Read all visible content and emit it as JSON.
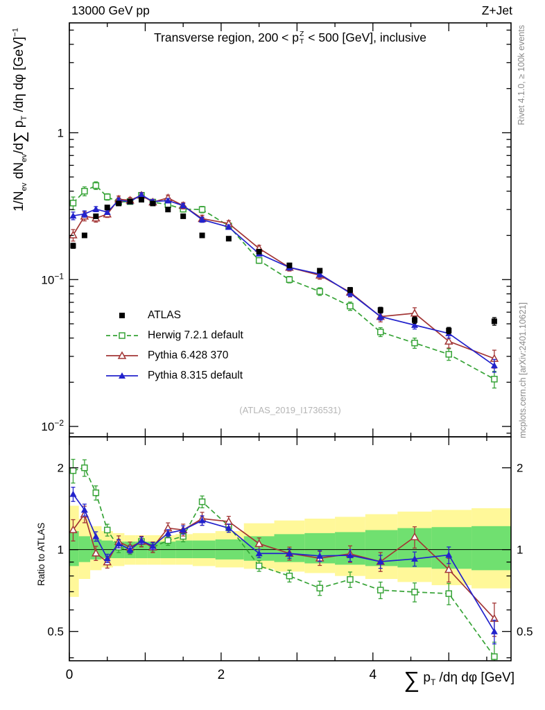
{
  "header": {
    "left": "13000 GeV pp",
    "right": "Z+Jet"
  },
  "side_notes": {
    "rivet": "Rivet 4.1.0, ≥ 100k events",
    "mcplots": "mcplots.cern.ch [arXiv:2401.10621]"
  },
  "watermark": "(ATLAS_2019_I1736531)",
  "labels": {
    "title": {
      "pre": "Transverse region, 200 < p",
      "sup": "Z",
      "sub": "T",
      "post": " < 500 [GeV], inclusive"
    },
    "ylabel_main": {
      "p1": "1/N",
      "s1": "ev",
      "p2": " dN",
      "s2": "ev",
      "p3": "/d",
      "sum": "∑",
      "p4": " p",
      "s3": "T",
      "p5": " /dη dφ  [GeV]",
      "sup": "−1"
    },
    "ylabel_ratio": "Ratio to ATLAS",
    "xlabel": {
      "sum": "∑",
      "p1": " p",
      "s1": "T",
      "p2": " /dη dφ [GeV]"
    }
  },
  "chart_data": {
    "type": "line",
    "title": "Transverse region, 200 < pT(Z) < 500 [GeV], inclusive",
    "xlabel": "∑ pT /dη dφ [GeV]",
    "ylabel": "1/N_ev dN_ev/d∑ pT /dη dφ [GeV]^-1",
    "ylabel_ratio": "Ratio to ATLAS",
    "x_range": [
      0,
      5.82
    ],
    "x_major_ticks": [
      {
        "value": 0,
        "label": "0"
      },
      {
        "value": 2,
        "label": "2"
      },
      {
        "value": 4,
        "label": "4"
      }
    ],
    "x_minor_step": 0.5,
    "y_main": {
      "scale": "log",
      "range": [
        0.0085,
        5.6
      ],
      "ticks": [
        {
          "value": 1,
          "base": "1",
          "exp": ""
        },
        {
          "value": 0.1,
          "base": "10",
          "exp": "−1"
        },
        {
          "value": 0.01,
          "base": "10",
          "exp": "−2"
        }
      ]
    },
    "y_ratio": {
      "scale": "log",
      "range": [
        0.39,
        2.6
      ],
      "ticks": [
        {
          "value": 0.5,
          "label": "0.5"
        },
        {
          "value": 1,
          "label": "1"
        },
        {
          "value": 2,
          "label": "2"
        }
      ],
      "minor": [
        0.4,
        0.6,
        0.7,
        0.8,
        0.9
      ]
    },
    "x": [
      0.05,
      0.2,
      0.35,
      0.5,
      0.65,
      0.8,
      0.95,
      1.1,
      1.3,
      1.5,
      1.75,
      2.1,
      2.5,
      2.9,
      3.3,
      3.7,
      4.1,
      4.55,
      5.0,
      5.6
    ],
    "series": [
      {
        "id": "atlas",
        "name": "ATLAS",
        "color": "#000000",
        "marker": "filled-square",
        "line": "none",
        "ref": true,
        "values": [
          0.17,
          0.2,
          0.27,
          0.31,
          0.33,
          0.34,
          0.35,
          0.33,
          0.3,
          0.27,
          0.2,
          0.19,
          0.155,
          0.125,
          0.115,
          0.085,
          0.062,
          0.053,
          0.045,
          0.052
        ],
        "err_frac": [
          0.04,
          0.035,
          0.03,
          0.03,
          0.03,
          0.03,
          0.03,
          0.03,
          0.03,
          0.03,
          0.03,
          0.03,
          0.03,
          0.035,
          0.035,
          0.04,
          0.045,
          0.05,
          0.05,
          0.06
        ]
      },
      {
        "id": "herwig",
        "name": "Herwig 7.2.1 default",
        "color": "#36a336",
        "marker": "open-square",
        "line": "dashed",
        "ref": false,
        "values": [
          0.332,
          0.4,
          0.437,
          0.366,
          0.337,
          0.34,
          0.375,
          0.337,
          0.324,
          0.302,
          0.3,
          0.232,
          0.135,
          0.1,
          0.083,
          0.066,
          0.044,
          0.037,
          0.031,
          0.021
        ],
        "err_frac": [
          0.1,
          0.07,
          0.06,
          0.05,
          0.045,
          0.04,
          0.04,
          0.04,
          0.04,
          0.045,
          0.05,
          0.04,
          0.045,
          0.05,
          0.06,
          0.065,
          0.07,
          0.08,
          0.09,
          0.13
        ]
      },
      {
        "id": "pythia6",
        "name": "Pythia 6.428 370",
        "color": "#a23535",
        "marker": "open-triangle",
        "line": "solid",
        "ref": false,
        "values": [
          0.201,
          0.27,
          0.262,
          0.279,
          0.353,
          0.347,
          0.375,
          0.337,
          0.36,
          0.319,
          0.26,
          0.241,
          0.163,
          0.121,
          0.107,
          0.082,
          0.056,
          0.059,
          0.038,
          0.029
        ],
        "err_frac": [
          0.09,
          0.07,
          0.06,
          0.05,
          0.05,
          0.045,
          0.045,
          0.045,
          0.045,
          0.05,
          0.055,
          0.045,
          0.05,
          0.055,
          0.06,
          0.07,
          0.08,
          0.09,
          0.1,
          0.14
        ]
      },
      {
        "id": "pythia8",
        "name": "Pythia 8.315 default",
        "color": "#2222cc",
        "marker": "filled-triangle",
        "line": "solid",
        "ref": false,
        "values": [
          0.272,
          0.28,
          0.302,
          0.288,
          0.347,
          0.34,
          0.378,
          0.34,
          0.345,
          0.319,
          0.256,
          0.228,
          0.15,
          0.121,
          0.109,
          0.081,
          0.056,
          0.049,
          0.043,
          0.026
        ],
        "err_frac": [
          0.06,
          0.05,
          0.04,
          0.035,
          0.035,
          0.03,
          0.03,
          0.03,
          0.03,
          0.035,
          0.04,
          0.035,
          0.035,
          0.04,
          0.045,
          0.05,
          0.055,
          0.06,
          0.07,
          0.1
        ]
      }
    ],
    "bands": {
      "yellow_color": "#fff899",
      "green_color": "#70e070",
      "yellow_lo": [
        0.67,
        0.78,
        0.84,
        0.86,
        0.87,
        0.88,
        0.88,
        0.88,
        0.88,
        0.88,
        0.87,
        0.86,
        0.85,
        0.83,
        0.82,
        0.8,
        0.78,
        0.76,
        0.74,
        0.72
      ],
      "yellow_hi": [
        1.45,
        1.3,
        1.22,
        1.17,
        1.15,
        1.13,
        1.13,
        1.13,
        1.13,
        1.14,
        1.15,
        1.17,
        1.25,
        1.28,
        1.3,
        1.32,
        1.35,
        1.38,
        1.4,
        1.42
      ],
      "green_lo": [
        0.87,
        0.9,
        0.92,
        0.93,
        0.93,
        0.93,
        0.93,
        0.93,
        0.93,
        0.93,
        0.93,
        0.92,
        0.91,
        0.9,
        0.89,
        0.88,
        0.87,
        0.86,
        0.85,
        0.84
      ],
      "green_hi": [
        1.17,
        1.12,
        1.09,
        1.08,
        1.07,
        1.07,
        1.07,
        1.07,
        1.07,
        1.08,
        1.08,
        1.09,
        1.12,
        1.14,
        1.15,
        1.16,
        1.18,
        1.2,
        1.21,
        1.22
      ]
    },
    "reference_line": 1,
    "legend_position": "middle-left"
  }
}
